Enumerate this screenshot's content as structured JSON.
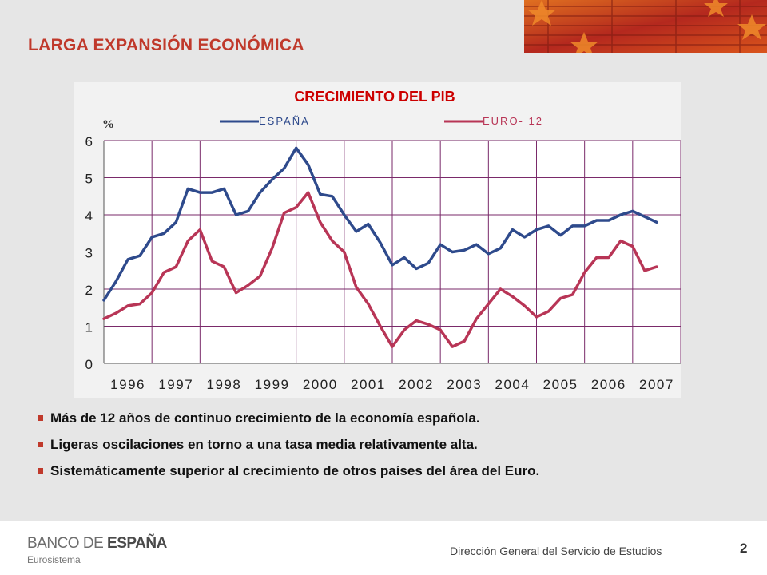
{
  "slide": {
    "title": "LARGA EXPANSIÓN ECONÓMICA",
    "bullets": [
      "Más de 12 años de continuo crecimiento de la economía española.",
      "Ligeras oscilaciones en torno a una tasa media relativamente alta.",
      "Sistemáticamente superior al crecimiento de otros países del área del Euro."
    ]
  },
  "footer": {
    "logo_light": "BANCO DE ",
    "logo_bold": "ESPAÑA",
    "logo_sub": "Eurosistema",
    "department": "Dirección General del Servicio de Estudios",
    "page_number": "2"
  },
  "colors": {
    "accent": "#c0392b",
    "espana": "#2e4a8c",
    "euro": "#b83556"
  },
  "chart_data": {
    "type": "line",
    "title": "CRECIMIENTO DEL PIB",
    "ylabel": "%",
    "ylim": [
      0,
      6
    ],
    "yticks": [
      0,
      1,
      2,
      3,
      4,
      5,
      6
    ],
    "xlim": [
      1995.0,
      2007.0
    ],
    "x_tick_labels": [
      "1996",
      "1997",
      "1998",
      "1999",
      "2000",
      "2001",
      "2002",
      "2003",
      "2004",
      "2005",
      "2006",
      "2007"
    ],
    "grid": true,
    "legend_position": "top",
    "x": [
      1995.0,
      1995.25,
      1995.5,
      1995.75,
      1996.0,
      1996.25,
      1996.5,
      1996.75,
      1997.0,
      1997.25,
      1997.5,
      1997.75,
      1998.0,
      1998.25,
      1998.5,
      1998.75,
      1999.0,
      1999.25,
      1999.5,
      1999.75,
      2000.0,
      2000.25,
      2000.5,
      2000.75,
      2001.0,
      2001.25,
      2001.5,
      2001.75,
      2002.0,
      2002.25,
      2002.5,
      2002.75,
      2003.0,
      2003.25,
      2003.5,
      2003.75,
      2004.0,
      2004.25,
      2004.5,
      2004.75,
      2005.0,
      2005.25,
      2005.5,
      2005.75,
      2006.0,
      2006.25,
      2006.5,
      2006.75,
      2007.0
    ],
    "series": [
      {
        "name": "ESPAÑA",
        "values": [
          1.7,
          2.2,
          2.8,
          2.9,
          3.4,
          3.5,
          3.8,
          4.7,
          4.6,
          4.6,
          4.7,
          4.0,
          4.1,
          4.6,
          4.95,
          5.25,
          5.8,
          5.35,
          4.55,
          4.5,
          4.0,
          3.55,
          3.75,
          3.25,
          2.65,
          2.85,
          2.55,
          2.7,
          3.2,
          3.0,
          3.05,
          3.2,
          2.95,
          3.1,
          3.6,
          3.4,
          3.6,
          3.7,
          3.45,
          3.7,
          3.7,
          3.85,
          3.85,
          4.0,
          4.1,
          3.95,
          3.8,
          null,
          null
        ]
      },
      {
        "name": "EURO- 12",
        "values": [
          1.2,
          1.35,
          1.55,
          1.6,
          1.9,
          2.45,
          2.6,
          3.3,
          3.6,
          2.75,
          2.6,
          1.9,
          2.1,
          2.35,
          3.1,
          4.05,
          4.2,
          4.6,
          3.8,
          3.3,
          3.0,
          2.05,
          1.6,
          1.0,
          0.45,
          0.9,
          1.15,
          1.05,
          0.9,
          0.45,
          0.6,
          1.2,
          1.6,
          2.0,
          1.8,
          1.55,
          1.25,
          1.4,
          1.75,
          1.85,
          2.45,
          2.85,
          2.85,
          3.3,
          3.15,
          2.5,
          2.6,
          null,
          null
        ]
      }
    ]
  }
}
